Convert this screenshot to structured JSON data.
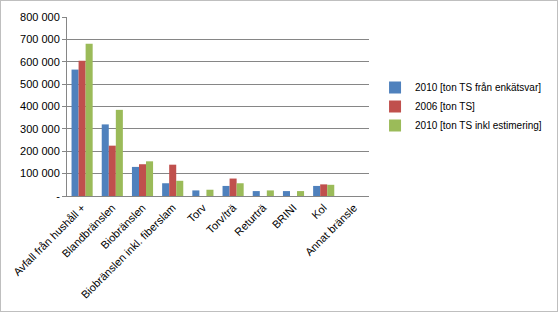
{
  "chart_data": {
    "type": "bar",
    "categories": [
      "Avfall från hushåll +",
      "Blandbränslen",
      "Biobränslen",
      "Biobränslen inkl. fiberslam",
      "Torv",
      "Torv/trä",
      "Returträ",
      "BRINI",
      "Kol",
      "Annat bränsle"
    ],
    "series": [
      {
        "name": "2010 [ton TS från enkätsvar]",
        "color": "#4f81bd",
        "values": [
          565000,
          320000,
          130000,
          57000,
          25000,
          45000,
          22000,
          22000,
          45000,
          0
        ]
      },
      {
        "name": "2006 [ton TS]",
        "color": "#c0504d",
        "values": [
          605000,
          225000,
          142000,
          140000,
          null,
          78000,
          null,
          null,
          52000,
          null
        ]
      },
      {
        "name": "2010 [ton TS inkl estimering]",
        "color": "#9bbb59",
        "values": [
          680000,
          385000,
          155000,
          68000,
          28000,
          57000,
          25000,
          22000,
          50000,
          0
        ]
      }
    ],
    "ylim": [
      0,
      800000
    ],
    "yticks": [
      {
        "value": 0,
        "label": "-"
      },
      {
        "value": 100000,
        "label": "100 000"
      },
      {
        "value": 200000,
        "label": "200 000"
      },
      {
        "value": 300000,
        "label": "300 000"
      },
      {
        "value": 400000,
        "label": "400 000"
      },
      {
        "value": 500000,
        "label": "500 000"
      },
      {
        "value": 600000,
        "label": "600 000"
      },
      {
        "value": 700000,
        "label": "700 000"
      },
      {
        "value": 800000,
        "label": "800 000"
      }
    ],
    "grid": true,
    "legend": "right"
  }
}
